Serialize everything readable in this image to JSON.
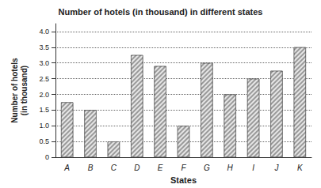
{
  "chart_data": {
    "type": "bar",
    "title": "Number of hotels (in thousand) in different states",
    "x_label": "States",
    "y_label": "Number of hotels\n(in thousand)",
    "categories": [
      "A",
      "B",
      "C",
      "D",
      "E",
      "F",
      "G",
      "H",
      "I",
      "J",
      "K"
    ],
    "values": [
      1.75,
      1.5,
      0.5,
      3.25,
      2.9,
      1.0,
      3.0,
      2.0,
      2.5,
      2.75,
      3.5
    ],
    "color": "#9a9a9a",
    "ylim": [
      0,
      4.25
    ],
    "yticks": [
      0,
      0.5,
      {
        "value": 1,
        "label": "1.0"
      },
      1.5,
      {
        "value": 2,
        "label": "2.0"
      },
      2.5,
      {
        "value": 3,
        "label": "3.0"
      },
      3.5,
      {
        "value": 4,
        "label": "4.0"
      }
    ],
    "grid": true
  }
}
